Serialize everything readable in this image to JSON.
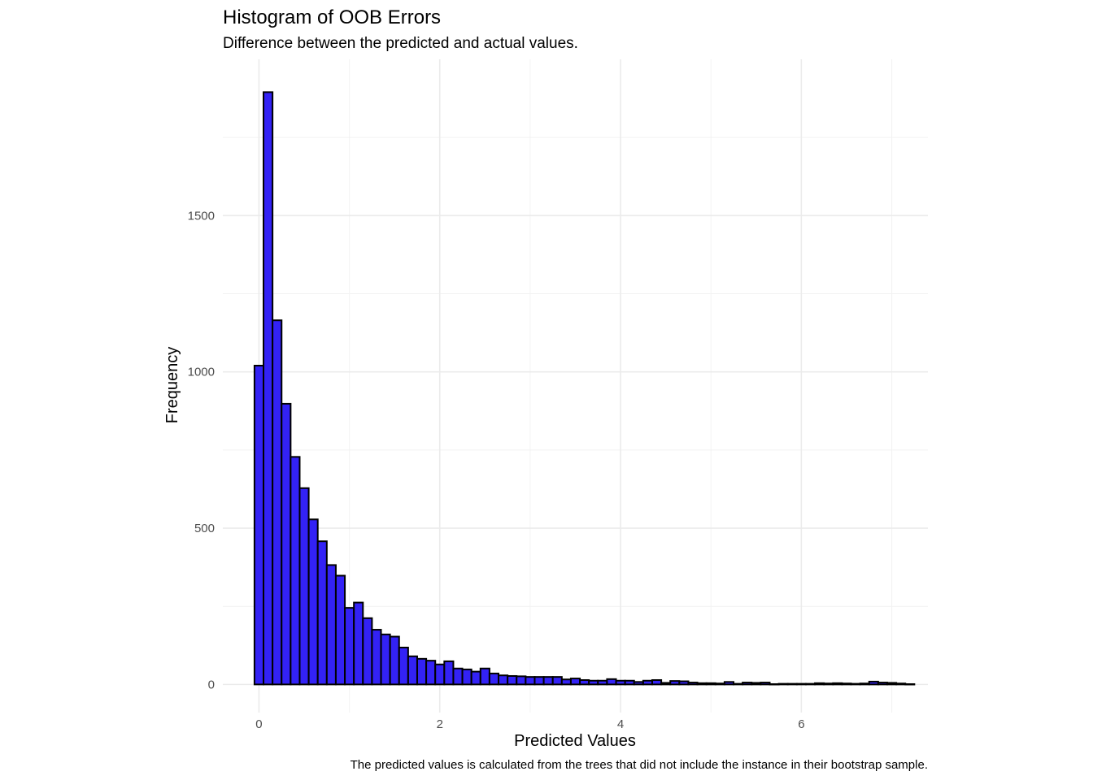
{
  "chart_data": {
    "type": "bar",
    "title": "Histogram of OOB Errors",
    "subtitle": "Difference between the predicted and actual values.",
    "xlabel": "Predicted Values",
    "ylabel": "Frequency",
    "caption": "The predicted values is calculated from the trees that did not include the instance in their bootstrap sample.",
    "bin_width": 0.1,
    "first_bin_start": -0.05,
    "bin_values": [
      1020,
      1895,
      1165,
      898,
      728,
      628,
      528,
      458,
      382,
      348,
      245,
      262,
      212,
      175,
      160,
      153,
      118,
      90,
      82,
      76,
      64,
      74,
      51,
      48,
      41,
      51,
      35,
      29,
      27,
      26,
      24,
      24,
      24,
      24,
      16,
      19,
      14,
      12,
      12,
      17,
      12,
      12,
      8,
      12,
      14,
      5,
      11,
      10,
      6,
      4,
      4,
      3,
      8,
      2,
      6,
      5,
      6,
      1,
      2,
      2,
      2,
      2,
      4,
      3,
      4,
      3,
      2,
      3,
      9,
      6,
      5,
      3,
      1
    ],
    "xlim": [
      -0.4,
      7.4
    ],
    "ylim": [
      -90,
      2000
    ],
    "x_ticks": [
      0,
      2,
      4,
      6
    ],
    "x_tick_labels": [
      "0",
      "2",
      "4",
      "6"
    ],
    "y_ticks": [
      0,
      500,
      1000,
      1500
    ],
    "y_tick_labels": [
      "0",
      "500",
      "1000",
      "1500"
    ],
    "grid": true,
    "bar_fill": "#3322f5",
    "bar_edge": "#000000"
  }
}
